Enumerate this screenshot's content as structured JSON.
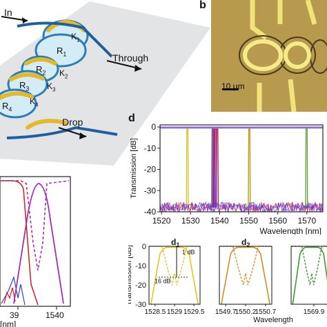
{
  "panel_labels": {
    "b": "b",
    "d": "d",
    "d1": "d",
    "d1_sub": "1",
    "d2": "d",
    "d2_sub": "2"
  },
  "schematic": {
    "in": "In",
    "through": "Through",
    "drop": "Drop",
    "rings": [
      "R",
      "R",
      "R",
      "R"
    ],
    "ring_subs": [
      "1",
      "2",
      "3",
      "4"
    ],
    "couplings": [
      "K",
      "K",
      "K",
      "K"
    ],
    "coupling_subs": [
      "1",
      "2",
      "3",
      "4"
    ]
  },
  "micrograph": {
    "scale_bar": "10 μm"
  },
  "chart_data": [
    {
      "type": "line",
      "id": "main-spectrum",
      "ylabel": "Transmission [dB]",
      "xlabel": "Wavelength [nm]",
      "xlim": [
        1519.5,
        1575.5
      ],
      "ylim": [
        -40,
        1
      ],
      "xticks": [
        1520,
        1530,
        1540,
        1550,
        1560,
        1570
      ],
      "yticks": [
        0,
        -10,
        -20,
        -30,
        -40
      ],
      "series": [
        {
          "color": "#d4c21a",
          "passbands": [
            1528.9,
            1550.2
          ]
        },
        {
          "color": "#2b3fd0",
          "passbands": [
            1537.6,
            1538.2
          ]
        },
        {
          "color": "#d11a1a",
          "passbands": [
            1538.0,
            1539.2
          ]
        },
        {
          "color": "#9a2fbf",
          "passbands": [
            1538.6
          ]
        },
        {
          "color": "#5aa02a",
          "passbands": [
            1569.9
          ]
        },
        {
          "color": "#c8961e",
          "passbands": [
            1550.2
          ]
        }
      ]
    },
    {
      "type": "line",
      "id": "zoom-c",
      "xlabel": "[nm]",
      "xticks": [
        "39",
        "1540"
      ],
      "series": [
        {
          "color": "#a42cb8",
          "style": "solid"
        },
        {
          "color": "#a42cb8",
          "style": "dashed"
        },
        {
          "color": "#d11a1a",
          "style": "solid"
        },
        {
          "color": "#2b3fd0",
          "style": "solid"
        }
      ]
    },
    {
      "type": "line",
      "id": "d1",
      "ylabel": "Transmission [dB]",
      "yticks": [
        "0",
        "-10",
        "-20",
        "-30"
      ],
      "xticks": [
        "1528.5",
        "1529",
        "1529.5"
      ],
      "annotations": [
        "1 dB",
        "16 dB"
      ],
      "series": [
        {
          "color": "#e8c21c",
          "style": "solid"
        },
        {
          "color": "#e8c21c",
          "style": "dashed"
        }
      ]
    },
    {
      "type": "line",
      "id": "d2",
      "xticks": [
        "1549.7",
        "1550.2",
        "1550.7"
      ],
      "series": [
        {
          "color": "#d98a1c",
          "style": "solid"
        },
        {
          "color": "#d98a1c",
          "style": "dashed"
        }
      ]
    },
    {
      "type": "line",
      "id": "d3",
      "xlabel": "Wavelength",
      "xticks": [
        "1569.9"
      ],
      "series": [
        {
          "color": "#3c9a2a",
          "style": "solid"
        },
        {
          "color": "#3c9a2a",
          "style": "dashed"
        }
      ]
    }
  ]
}
